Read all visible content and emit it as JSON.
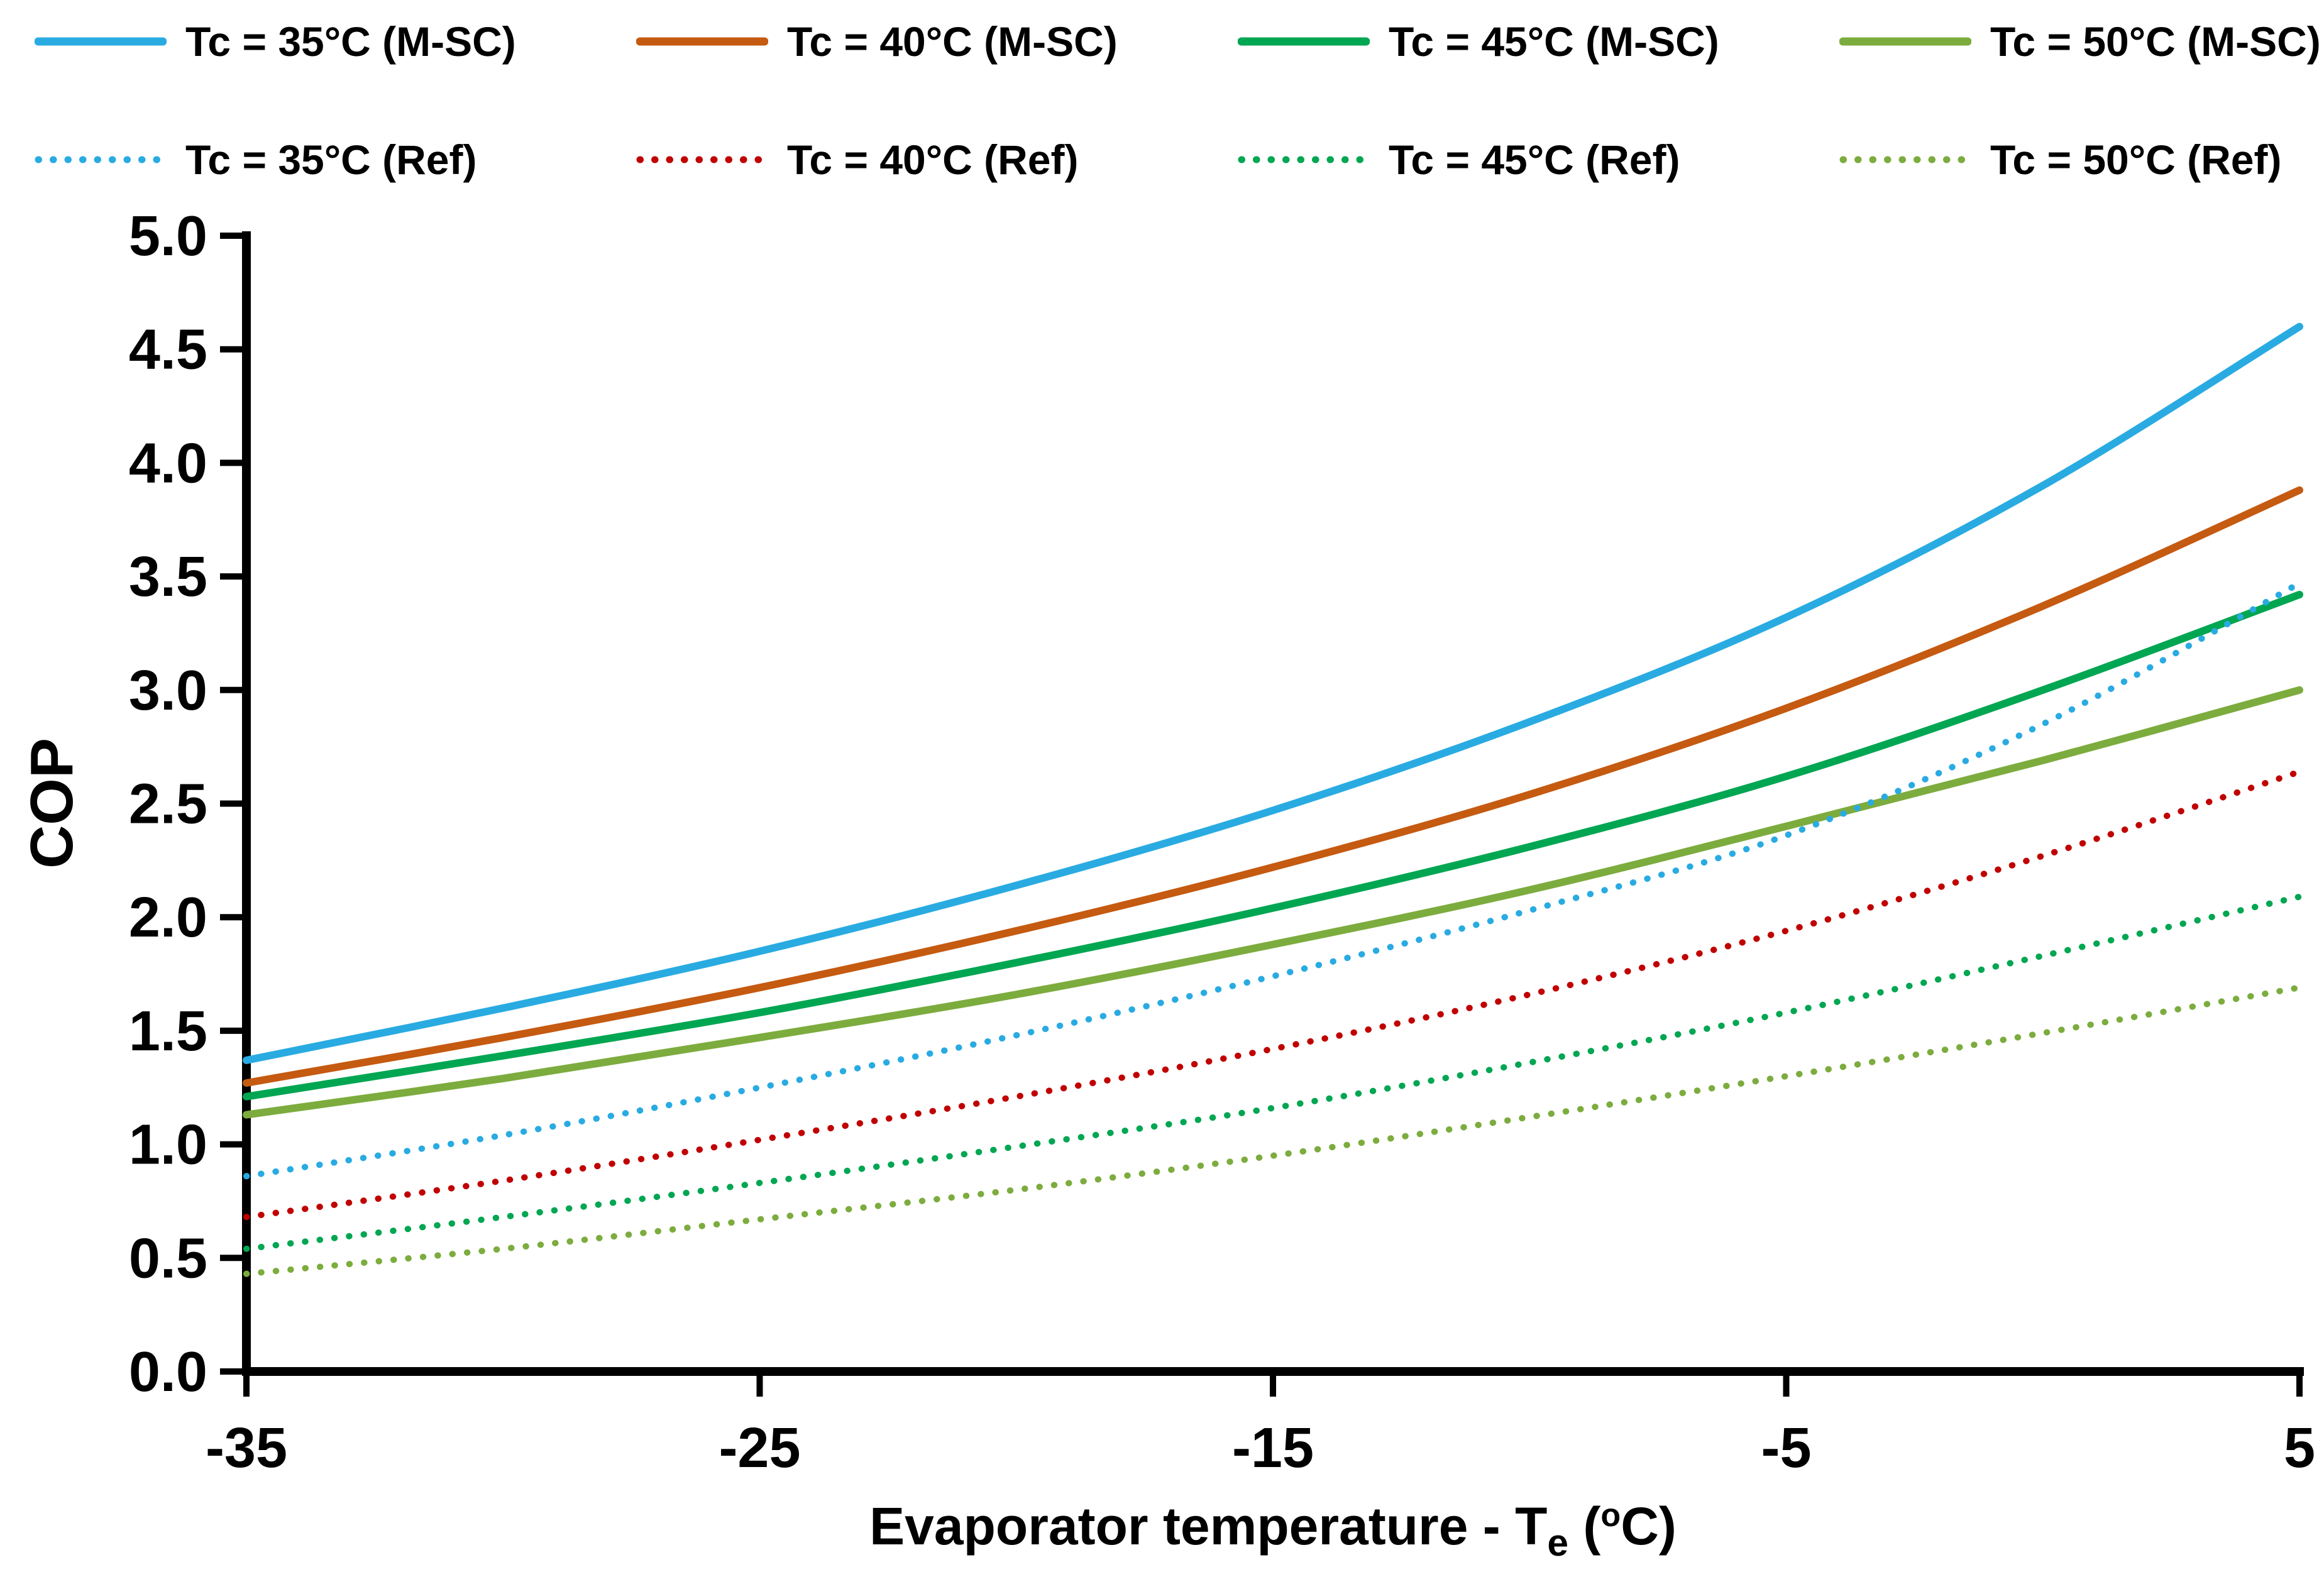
{
  "chart_data": {
    "type": "line",
    "title": "",
    "ylabel": "COP",
    "xlabel": "Evaporator temperature - Te (oC)",
    "xlabel_parts": {
      "pre": "Evaporator temperature - T",
      "sub": "e",
      "mid": " (",
      "sup": "o",
      "post": "C)"
    },
    "xlim": [
      -35,
      5
    ],
    "ylim": [
      0.0,
      5.0
    ],
    "x_tick_values": [
      -35,
      -25,
      -15,
      -5,
      5
    ],
    "x_tick_labels": [
      "-35",
      "-25",
      "-15",
      "-5",
      "5"
    ],
    "y_tick_values": [
      0,
      0.5,
      1,
      1.5,
      2,
      2.5,
      3,
      3.5,
      4,
      4.5,
      5
    ],
    "y_tick_labels": [
      "0.0",
      "0.5",
      "1.0",
      "1.5",
      "2.0",
      "2.5",
      "3.0",
      "3.5",
      "4.0",
      "4.5",
      "5.0"
    ],
    "grid": false,
    "legend_position": "top",
    "axis_color": "#000000",
    "x": [
      -35,
      -30,
      -25,
      -20,
      -15,
      -10,
      -5,
      0,
      5
    ],
    "series": [
      {
        "name": "Tc = 35°C (M-SC)",
        "color": "#29ABE2",
        "style": "solid",
        "values": [
          1.37,
          1.6,
          1.85,
          2.14,
          2.47,
          2.86,
          3.32,
          3.9,
          4.6
        ]
      },
      {
        "name": "Tc = 40°C (M-SC)",
        "color": "#C55A11",
        "style": "solid",
        "values": [
          1.27,
          1.47,
          1.69,
          1.94,
          2.22,
          2.54,
          2.92,
          3.37,
          3.88
        ]
      },
      {
        "name": "Tc = 45°C (M-SC)",
        "color": "#00A651",
        "style": "solid",
        "values": [
          1.21,
          1.39,
          1.58,
          1.8,
          2.04,
          2.31,
          2.62,
          3.0,
          3.42
        ]
      },
      {
        "name": "Tc = 50°C (M-SC)",
        "color": "#7CAC3E",
        "style": "solid",
        "values": [
          1.13,
          1.29,
          1.47,
          1.66,
          1.88,
          2.12,
          2.4,
          2.69,
          3.0
        ]
      },
      {
        "name": "Tc = 35°C (Ref)",
        "color": "#29ABE2",
        "style": "dotted",
        "values": [
          0.86,
          1.04,
          1.25,
          1.48,
          1.74,
          2.03,
          2.36,
          2.85,
          3.47
        ]
      },
      {
        "name": "Tc = 40°C (Ref)",
        "color": "#C00000",
        "style": "dotted",
        "values": [
          0.68,
          0.84,
          1.02,
          1.21,
          1.42,
          1.66,
          1.94,
          2.27,
          2.64
        ]
      },
      {
        "name": "Tc = 45°C (Ref)",
        "color": "#00A651",
        "style": "dotted",
        "values": [
          0.54,
          0.68,
          0.83,
          0.99,
          1.16,
          1.36,
          1.58,
          1.83,
          2.09
        ]
      },
      {
        "name": "Tc = 50°C (Ref)",
        "color": "#7CAC3E",
        "style": "dotted",
        "values": [
          0.43,
          0.54,
          0.67,
          0.8,
          0.95,
          1.12,
          1.3,
          1.49,
          1.69
        ]
      }
    ]
  }
}
